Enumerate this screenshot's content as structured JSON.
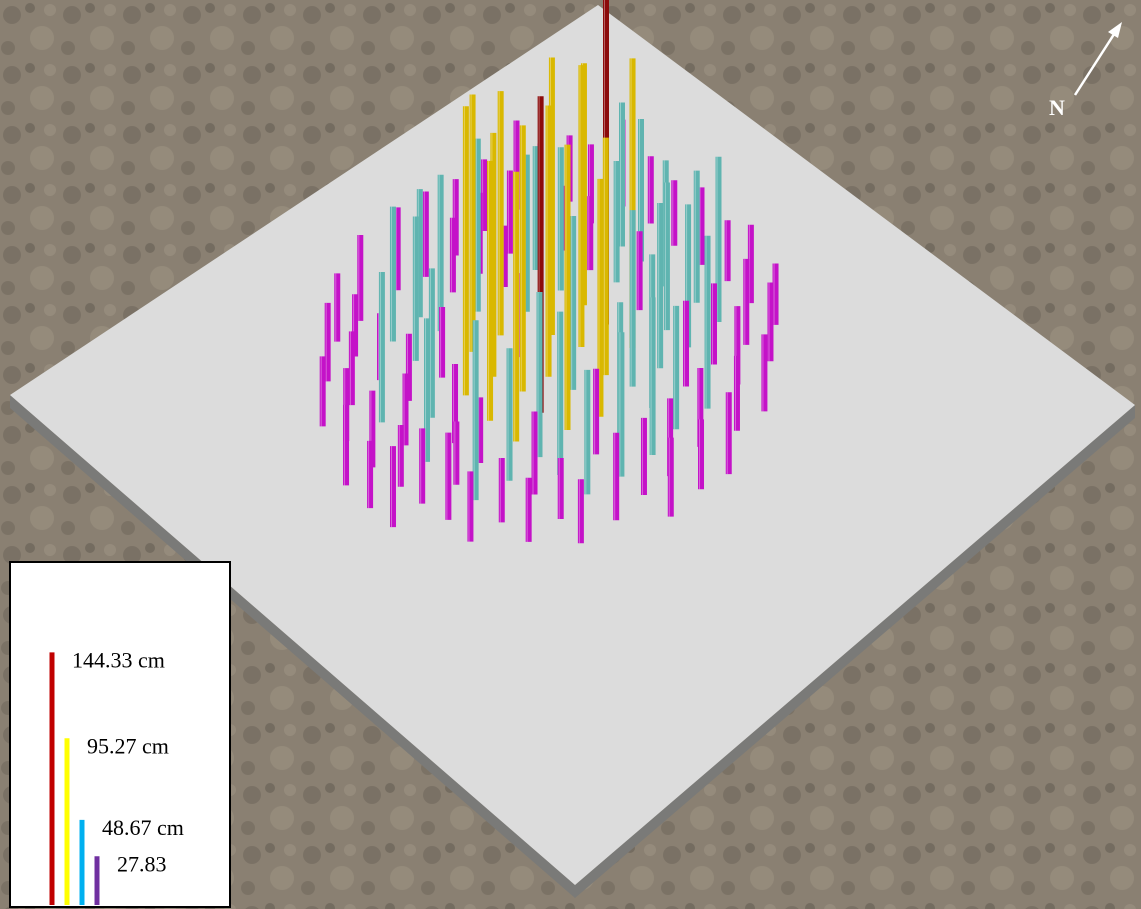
{
  "compass": "N",
  "legend": {
    "items": [
      {
        "value": 144.33,
        "label": "144.33 cm",
        "color": "#c00000"
      },
      {
        "value": 95.27,
        "label": "95.27 cm",
        "color": "#ffff00"
      },
      {
        "value": 48.67,
        "label": "48.67 cm",
        "color": "#00b0f0"
      },
      {
        "value": 27.83,
        "label": "27.83",
        "color": "#7030a0"
      }
    ]
  }
}
